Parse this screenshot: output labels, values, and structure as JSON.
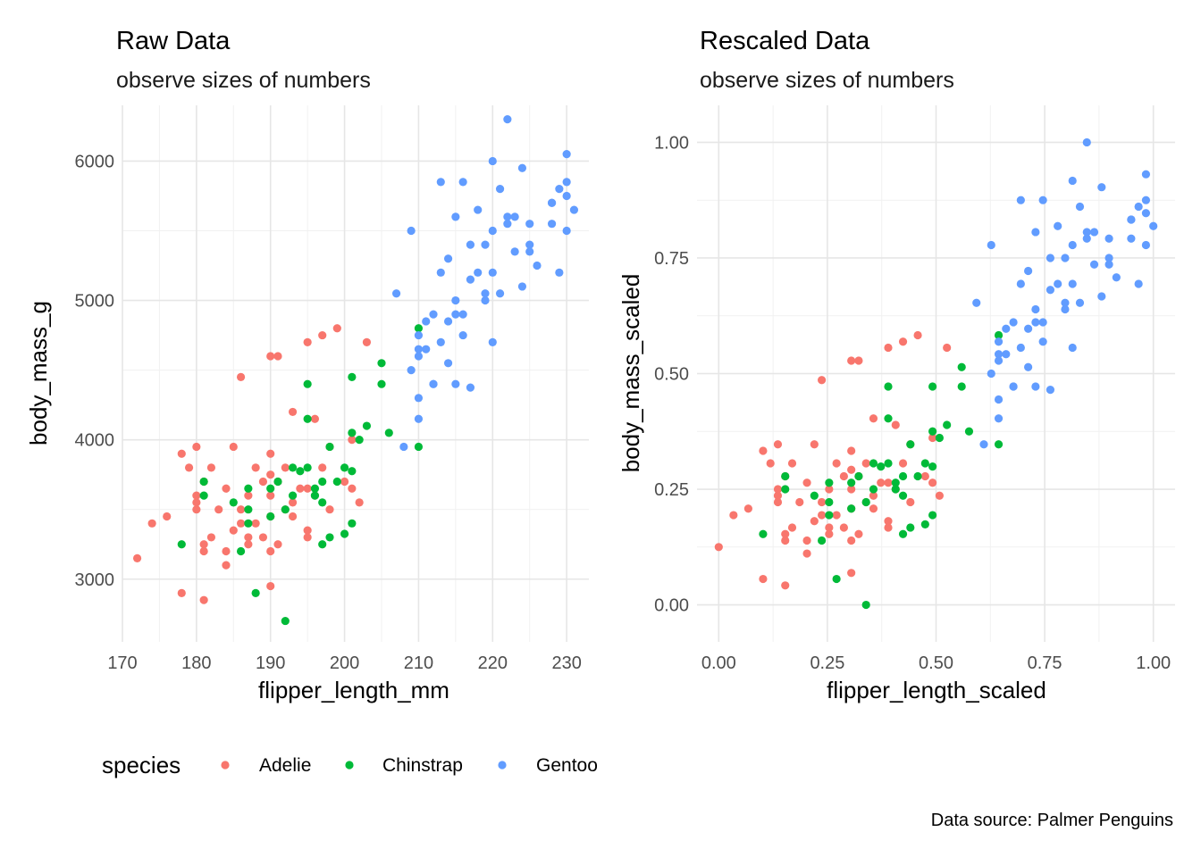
{
  "caption": "Data source: Palmer Penguins",
  "legend": {
    "title": "species",
    "entries": [
      {
        "name": "Adelie",
        "color": "#F8766D"
      },
      {
        "name": "Chinstrap",
        "color": "#00BA38"
      },
      {
        "name": "Gentoo",
        "color": "#619CFF"
      }
    ]
  },
  "chart_data": [
    {
      "type": "scatter",
      "title": "Raw Data",
      "subtitle": "observe sizes of numbers",
      "xlabel": "flipper_length_mm",
      "ylabel": "body_mass_g",
      "xlim": [
        170,
        233
      ],
      "ylim": [
        2550,
        6400
      ],
      "xticks": [
        170,
        180,
        190,
        200,
        210,
        220,
        230
      ],
      "xtick_labels": [
        "170",
        "180",
        "190",
        "200",
        "210",
        "220",
        "230"
      ],
      "yticks": [
        3000,
        4000,
        5000,
        6000
      ],
      "ytick_labels": [
        "3000",
        "4000",
        "5000",
        "6000"
      ],
      "grid": true,
      "series": [
        {
          "name": "Adelie",
          "color": "#F8766D",
          "x": [
            172,
            174,
            176,
            178,
            178,
            179,
            180,
            180,
            180,
            181,
            181,
            181,
            182,
            182,
            183,
            184,
            184,
            185,
            185,
            186,
            186,
            187,
            187,
            188,
            188,
            189,
            189,
            190,
            190,
            190,
            190,
            190,
            191,
            191,
            192,
            192,
            193,
            193,
            194,
            195,
            195,
            196,
            196,
            197,
            197,
            198,
            198,
            199,
            200,
            201,
            202,
            203,
            181,
            184,
            186,
            190,
            193,
            195,
            180,
            187,
            190,
            191,
            195,
            201
          ],
          "y": [
            3150,
            3400,
            3450,
            3900,
            2900,
            3800,
            3550,
            3950,
            3600,
            3700,
            3200,
            2850,
            3300,
            3800,
            3500,
            3200,
            3100,
            3950,
            3350,
            4450,
            3500,
            3600,
            3250,
            3800,
            3400,
            3700,
            3300,
            4600,
            3450,
            3750,
            3200,
            2950,
            4600,
            3250,
            3500,
            3800,
            3550,
            4200,
            3650,
            4700,
            3300,
            4150,
            3600,
            4750,
            3800,
            3950,
            3500,
            4800,
            3700,
            4000,
            3550,
            4700,
            3250,
            3650,
            3400,
            3900,
            3450,
            3650,
            3500,
            3300,
            3600,
            3700,
            3350,
            3650
          ]
        },
        {
          "name": "Chinstrap",
          "color": "#00BA38",
          "x": [
            178,
            181,
            181,
            185,
            186,
            187,
            187,
            188,
            190,
            190,
            191,
            192,
            193,
            193,
            194,
            195,
            195,
            195,
            196,
            196,
            197,
            197,
            198,
            198,
            199,
            200,
            200,
            201,
            201,
            201,
            202,
            203,
            205,
            205,
            206,
            210,
            210,
            187,
            192,
            197,
            201
          ],
          "y": [
            3250,
            3600,
            3700,
            3550,
            3200,
            3650,
            3500,
            2900,
            3650,
            3450,
            3700,
            2700,
            3800,
            3600,
            3775,
            4400,
            3800,
            4150,
            3600,
            3650,
            3700,
            3250,
            3300,
            3950,
            3700,
            3800,
            3325,
            4050,
            3775,
            4450,
            4000,
            4100,
            4550,
            4400,
            4050,
            4800,
            3950,
            3400,
            3500,
            3550,
            3400
          ]
        },
        {
          "name": "Gentoo",
          "color": "#619CFF",
          "x": [
            207,
            208,
            209,
            209,
            210,
            210,
            210,
            210,
            211,
            211,
            212,
            212,
            213,
            213,
            213,
            214,
            214,
            215,
            215,
            215,
            216,
            216,
            217,
            217,
            218,
            218,
            219,
            219,
            220,
            220,
            220,
            221,
            221,
            222,
            222,
            223,
            223,
            224,
            224,
            225,
            225,
            226,
            228,
            228,
            229,
            229,
            230,
            230,
            230,
            230,
            231,
            210,
            212,
            215,
            217,
            220,
            222,
            225,
            228,
            214,
            216,
            219
          ],
          "y": [
            5050,
            3950,
            5500,
            4500,
            4600,
            4300,
            4150,
            4750,
            4650,
            4850,
            4400,
            4900,
            5200,
            4700,
            5850,
            4850,
            5300,
            5000,
            5600,
            4400,
            4750,
            5850,
            5150,
            5400,
            5200,
            5650,
            5000,
            5400,
            4700,
            5500,
            6000,
            5050,
            5800,
            6300,
            5550,
            5600,
            5350,
            5950,
            5100,
            5400,
            5550,
            5250,
            5700,
            5550,
            5200,
            5800,
            5850,
            6050,
            5750,
            5500,
            5650,
            4650,
            4400,
            4900,
            4375,
            5200,
            5600,
            5350,
            5700,
            4550,
            4900,
            5050
          ]
        }
      ]
    },
    {
      "type": "scatter",
      "title": "Rescaled Data",
      "subtitle": "observe sizes of numbers",
      "xlabel": "flipper_length_scaled",
      "ylabel": "body_mass_scaled",
      "xlim": [
        -0.05,
        1.05
      ],
      "ylim": [
        -0.08,
        1.08
      ],
      "xticks": [
        0,
        0.25,
        0.5,
        0.75,
        1
      ],
      "xtick_labels": [
        "0.00",
        "0.25",
        "0.50",
        "0.75",
        "1.00"
      ],
      "yticks": [
        0,
        0.25,
        0.5,
        0.75,
        1
      ],
      "ytick_labels": [
        "0.00",
        "0.25",
        "0.50",
        "0.75",
        "1.00"
      ],
      "grid": true,
      "series": [
        {
          "name": "Adelie",
          "color": "#F8766D",
          "x": [
            0.0,
            0.034,
            0.068,
            0.102,
            0.102,
            0.119,
            0.136,
            0.136,
            0.136,
            0.153,
            0.153,
            0.153,
            0.169,
            0.169,
            0.186,
            0.203,
            0.203,
            0.22,
            0.22,
            0.237,
            0.237,
            0.254,
            0.254,
            0.271,
            0.271,
            0.288,
            0.288,
            0.305,
            0.305,
            0.305,
            0.305,
            0.305,
            0.322,
            0.322,
            0.339,
            0.339,
            0.356,
            0.356,
            0.373,
            0.39,
            0.39,
            0.407,
            0.407,
            0.424,
            0.424,
            0.441,
            0.441,
            0.458,
            0.475,
            0.492,
            0.508,
            0.525,
            0.153,
            0.203,
            0.237,
            0.305,
            0.356,
            0.39,
            0.136,
            0.254,
            0.305,
            0.322,
            0.39,
            0.492
          ],
          "y": [
            0.125,
            0.194,
            0.208,
            0.333,
            0.056,
            0.306,
            0.236,
            0.347,
            0.25,
            0.278,
            0.139,
            0.042,
            0.167,
            0.306,
            0.222,
            0.139,
            0.111,
            0.347,
            0.181,
            0.486,
            0.222,
            0.25,
            0.153,
            0.306,
            0.194,
            0.278,
            0.167,
            0.528,
            0.208,
            0.292,
            0.139,
            0.069,
            0.528,
            0.153,
            0.222,
            0.306,
            0.236,
            0.403,
            0.264,
            0.556,
            0.167,
            0.389,
            0.25,
            0.569,
            0.306,
            0.347,
            0.222,
            0.583,
            0.278,
            0.361,
            0.236,
            0.556,
            0.153,
            0.264,
            0.194,
            0.333,
            0.208,
            0.264,
            0.222,
            0.167,
            0.25,
            0.278,
            0.181,
            0.264
          ]
        },
        {
          "name": "Chinstrap",
          "color": "#00BA38",
          "x": [
            0.102,
            0.153,
            0.153,
            0.22,
            0.237,
            0.254,
            0.254,
            0.271,
            0.305,
            0.305,
            0.322,
            0.339,
            0.356,
            0.356,
            0.373,
            0.39,
            0.39,
            0.39,
            0.407,
            0.407,
            0.424,
            0.424,
            0.441,
            0.441,
            0.458,
            0.475,
            0.475,
            0.492,
            0.492,
            0.492,
            0.508,
            0.525,
            0.559,
            0.559,
            0.576,
            0.644,
            0.644,
            0.254,
            0.339,
            0.424,
            0.492
          ],
          "y": [
            0.153,
            0.25,
            0.278,
            0.236,
            0.139,
            0.264,
            0.222,
            0.056,
            0.264,
            0.208,
            0.278,
            0.0,
            0.306,
            0.25,
            0.299,
            0.472,
            0.306,
            0.403,
            0.25,
            0.264,
            0.278,
            0.153,
            0.167,
            0.347,
            0.278,
            0.306,
            0.174,
            0.375,
            0.299,
            0.472,
            0.361,
            0.389,
            0.514,
            0.472,
            0.375,
            0.583,
            0.347,
            0.194,
            0.222,
            0.236,
            0.194
          ]
        },
        {
          "name": "Gentoo",
          "color": "#619CFF",
          "x": [
            0.593,
            0.61,
            0.627,
            0.627,
            0.644,
            0.644,
            0.644,
            0.644,
            0.661,
            0.661,
            0.678,
            0.678,
            0.695,
            0.695,
            0.695,
            0.712,
            0.712,
            0.729,
            0.729,
            0.729,
            0.746,
            0.746,
            0.763,
            0.763,
            0.78,
            0.78,
            0.797,
            0.797,
            0.814,
            0.814,
            0.814,
            0.831,
            0.831,
            0.847,
            0.847,
            0.864,
            0.864,
            0.881,
            0.881,
            0.898,
            0.898,
            0.915,
            0.949,
            0.949,
            0.966,
            0.966,
            0.983,
            0.983,
            0.983,
            0.983,
            1.0,
            0.644,
            0.678,
            0.729,
            0.763,
            0.814,
            0.847,
            0.898,
            0.949,
            0.712,
            0.746,
            0.797
          ],
          "y": [
            0.653,
            0.347,
            0.778,
            0.5,
            0.528,
            0.444,
            0.403,
            0.569,
            0.542,
            0.597,
            0.472,
            0.611,
            0.694,
            0.556,
            0.875,
            0.597,
            0.722,
            0.639,
            0.806,
            0.472,
            0.569,
            0.875,
            0.681,
            0.75,
            0.694,
            0.819,
            0.639,
            0.75,
            0.556,
            0.778,
            0.917,
            0.653,
            0.861,
            1.0,
            0.792,
            0.806,
            0.736,
            0.903,
            0.667,
            0.75,
            0.792,
            0.708,
            0.833,
            0.792,
            0.694,
            0.861,
            0.875,
            0.931,
            0.847,
            0.778,
            0.819,
            0.542,
            0.472,
            0.611,
            0.465,
            0.694,
            0.806,
            0.736,
            0.833,
            0.514,
            0.611,
            0.653
          ]
        }
      ]
    }
  ]
}
